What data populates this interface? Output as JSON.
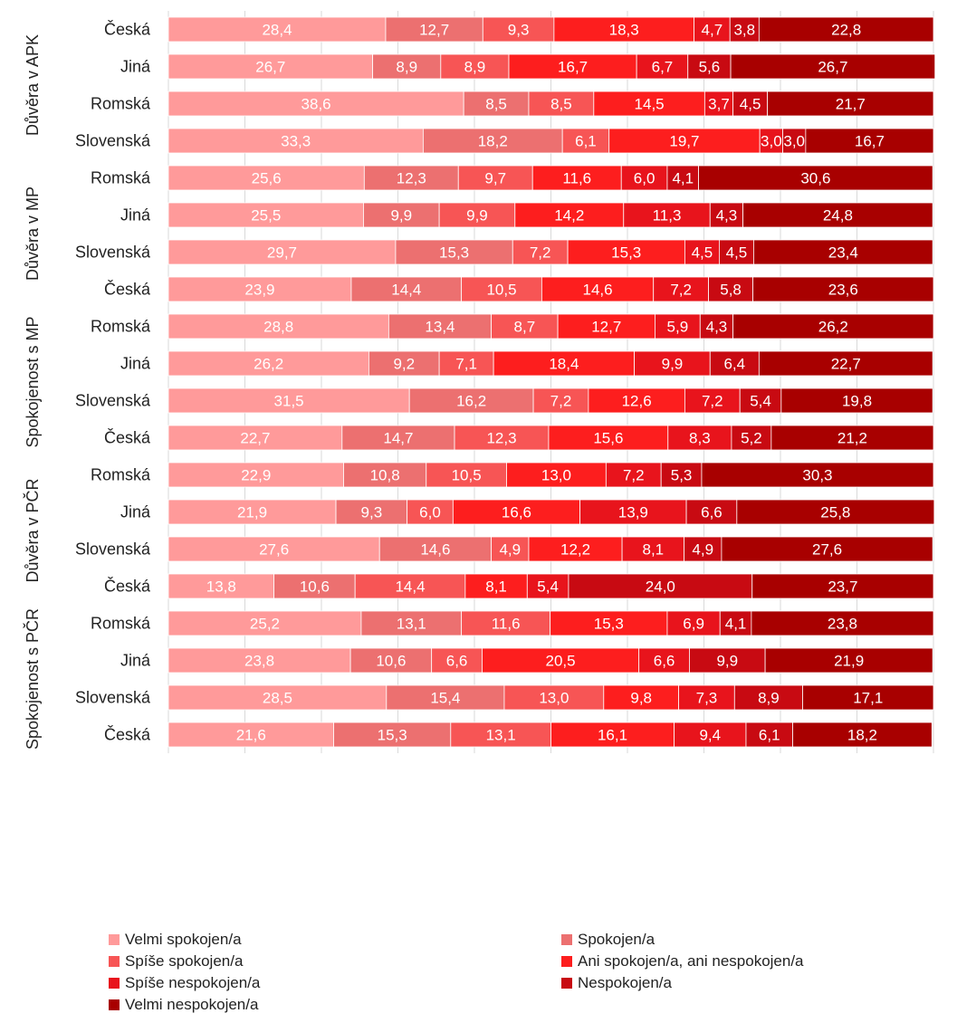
{
  "chart_data": {
    "type": "bar",
    "orientation": "horizontal",
    "stacked": true,
    "xlim": [
      0,
      100
    ],
    "grid": true,
    "legend_position": "bottom",
    "series": [
      {
        "name": "Velmi spokojen/a",
        "color": "#ff9a9a"
      },
      {
        "name": "Spokojen/a",
        "color": "#ec7070"
      },
      {
        "name": "Spíše spokojen/a",
        "color": "#f75555"
      },
      {
        "name": "Ani spokojen/a, ani nespokojen/a",
        "color": "#fd1e1e"
      },
      {
        "name": "Spíše nespokojen/a",
        "color": "#e8141c"
      },
      {
        "name": "Nespokojen/a",
        "color": "#c80a12"
      },
      {
        "name": "Velmi nespokojen/a",
        "color": "#a80000"
      }
    ],
    "groups": [
      {
        "label": "Důvěra v APK",
        "rows": [
          {
            "category": "Česká",
            "values": [
              "28,4",
              "12,7",
              "9,3",
              "18,3",
              "4,7",
              "3,8",
              "22,8"
            ]
          },
          {
            "category": "Jiná",
            "values": [
              "26,7",
              "8,9",
              "8,9",
              "16,7",
              "6,7",
              "5,6",
              "26,7"
            ]
          },
          {
            "category": "Romská",
            "values": [
              "38,6",
              "8,5",
              "8,5",
              "14,5",
              "3,7",
              "4,5",
              "21,7"
            ]
          },
          {
            "category": "Slovenská",
            "values": [
              "33,3",
              "18,2",
              "6,1",
              "19,7",
              "3,0",
              "3,0",
              "16,7"
            ]
          }
        ]
      },
      {
        "label": "Důvěra v MP",
        "rows": [
          {
            "category": "Romská",
            "values": [
              "25,6",
              "12,3",
              "9,7",
              "11,6",
              "6,0",
              "4,1",
              "30,6"
            ]
          },
          {
            "category": "Jiná",
            "values": [
              "25,5",
              "9,9",
              "9,9",
              "14,2",
              "11,3",
              "4,3",
              "24,8"
            ]
          },
          {
            "category": "Slovenská",
            "values": [
              "29,7",
              "15,3",
              "7,2",
              "15,3",
              "4,5",
              "4,5",
              "23,4"
            ]
          },
          {
            "category": "Česká",
            "values": [
              "23,9",
              "14,4",
              "10,5",
              "14,6",
              "7,2",
              "5,8",
              "23,6"
            ]
          }
        ]
      },
      {
        "label": "Spokojenost s MP",
        "rows": [
          {
            "category": "Romská",
            "values": [
              "28,8",
              "13,4",
              "8,7",
              "12,7",
              "5,9",
              "4,3",
              "26,2"
            ]
          },
          {
            "category": "Jiná",
            "values": [
              "26,2",
              "9,2",
              "7,1",
              "18,4",
              "9,9",
              "6,4",
              "22,7"
            ]
          },
          {
            "category": "Slovenská",
            "values": [
              "31,5",
              "16,2",
              "7,2",
              "12,6",
              "7,2",
              "5,4",
              "19,8"
            ]
          },
          {
            "category": "Česká",
            "values": [
              "22,7",
              "14,7",
              "12,3",
              "15,6",
              "8,3",
              "5,2",
              "21,2"
            ]
          }
        ]
      },
      {
        "label": "Důvěra v PČR",
        "rows": [
          {
            "category": "Romská",
            "values": [
              "22,9",
              "10,8",
              "10,5",
              "13,0",
              "7,2",
              "5,3",
              "30,3"
            ]
          },
          {
            "category": "Jiná",
            "values": [
              "21,9",
              "9,3",
              "6,0",
              "16,6",
              "13,9",
              "6,6",
              "25,8"
            ]
          },
          {
            "category": "Slovenská",
            "values": [
              "27,6",
              "14,6",
              "4,9",
              "12,2",
              "8,1",
              "4,9",
              "27,6"
            ]
          },
          {
            "category": "Česká",
            "values": [
              "13,8",
              "10,6",
              "14,4",
              "8,1",
              "5,4",
              "24,0",
              "23,7"
            ]
          }
        ]
      },
      {
        "label": "Spokojenost s PČR",
        "rows": [
          {
            "category": "Romská",
            "values": [
              "25,2",
              "13,1",
              "11,6",
              "15,3",
              "6,9",
              "4,1",
              "23,8"
            ]
          },
          {
            "category": "Jiná",
            "values": [
              "23,8",
              "10,6",
              "6,6",
              "20,5",
              "6,6",
              "9,9",
              "21,9"
            ]
          },
          {
            "category": "Slovenská",
            "values": [
              "28,5",
              "15,4",
              "13,0",
              "9,8",
              "7,3",
              "8,9",
              "17,1"
            ]
          },
          {
            "category": "Česká",
            "values": [
              "21,6",
              "15,3",
              "13,1",
              "16,1",
              "9,4",
              "6,1",
              "18,2"
            ]
          }
        ]
      }
    ]
  }
}
